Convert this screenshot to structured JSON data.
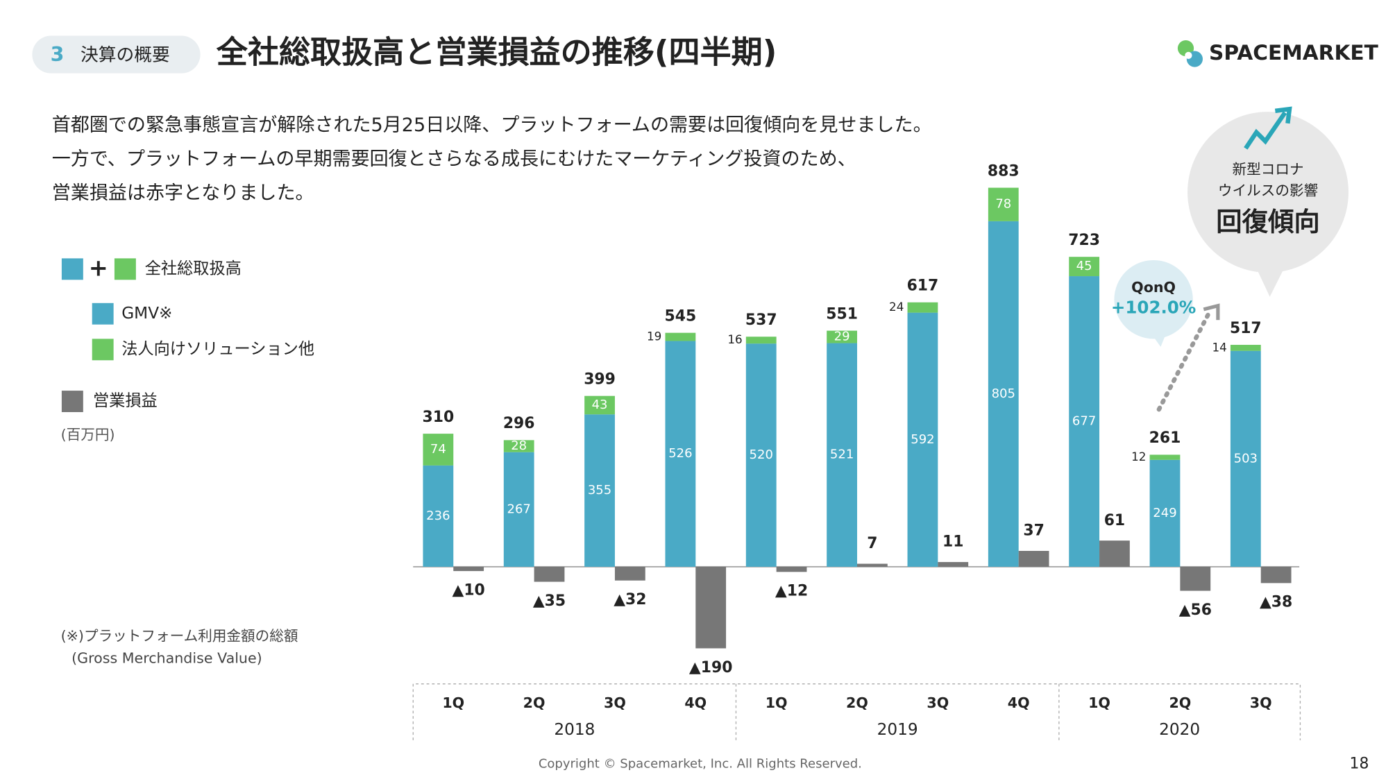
{
  "header": {
    "section_number": "3",
    "section": "決算の概要",
    "title": "全社総取扱高と営業損益の推移(四半期)",
    "logo": "SPACEMARKET"
  },
  "description": [
    "首都圏での緊急事態宣言が解除された5月25日以降、プラットフォームの需要は回復傾向を見せました。",
    "一方で、プラットフォームの早期需要回復とさらなる成長にむけたマーケティング投資のため、",
    "営業損益は赤字となりました。"
  ],
  "legend": {
    "total": "全社総取扱高",
    "unit": "(百万円)"
  },
  "badge": {
    "lines": [
      "新型コロナ",
      "ウイルスの影響"
    ],
    "headline": "回復傾向"
  },
  "qonq": {
    "label": "QonQ",
    "value": "+102.0%"
  },
  "footnote": [
    "(※)プラットフォーム利用金額の総額",
    "(Gross Merchandise Value)"
  ],
  "footer": {
    "copyright": "Copyright © Spacemarket, Inc. All Rights Reserved.",
    "page": "18"
  },
  "chart_data": {
    "type": "bar",
    "categories": [
      "1Q",
      "2Q",
      "3Q",
      "4Q",
      "1Q",
      "2Q",
      "3Q",
      "4Q",
      "1Q",
      "2Q",
      "3Q"
    ],
    "years": [
      "2018",
      "2019",
      "2020"
    ],
    "totals": [
      310,
      296,
      399,
      545,
      537,
      551,
      617,
      883,
      723,
      261,
      517
    ],
    "series": [
      {
        "name": "GMV※",
        "color": "#4aaac6",
        "values": [
          236,
          267,
          355,
          526,
          520,
          521,
          592,
          805,
          677,
          249,
          503
        ]
      },
      {
        "name": "法人向けソリューション他",
        "color": "#6cc862",
        "values": [
          74,
          28,
          43,
          19,
          16,
          29,
          24,
          78,
          45,
          12,
          14
        ]
      },
      {
        "name": "営業損益",
        "color": "#777777",
        "values": [
          -10,
          -35,
          -32,
          -190,
          -12,
          7,
          11,
          37,
          61,
          -56,
          -38
        ],
        "value_labels": [
          "▲10",
          "▲35",
          "▲32",
          "▲190",
          "▲12",
          "7",
          "11",
          "37",
          "61",
          "▲56",
          "▲38"
        ]
      }
    ]
  }
}
